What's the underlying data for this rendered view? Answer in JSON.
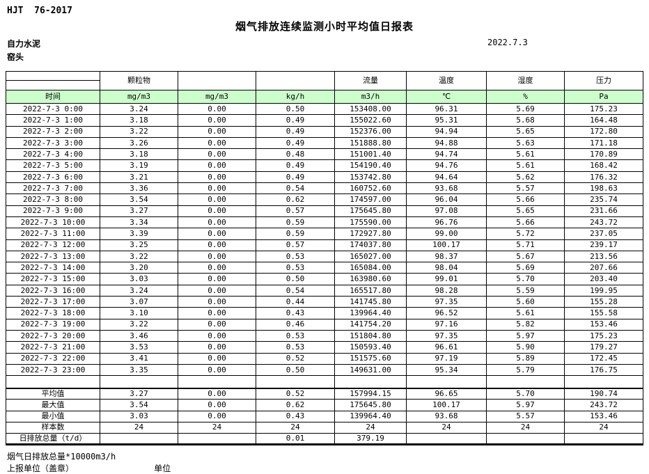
{
  "header": {
    "doc_code": "HJT  76-2017",
    "title": "烟气排放连续监测小时平均值日报表",
    "company": "自力水泥",
    "location": "窑头",
    "date": "2022.7.3"
  },
  "table": {
    "header_fill": "#ccffcc",
    "group_headers": [
      "",
      "颗粒物",
      "",
      "",
      "流量",
      "温度",
      "湿度",
      "压力"
    ],
    "unit_headers": [
      "时间",
      "mg/m3",
      "mg/m3",
      "kg/h",
      "m3/h",
      "℃",
      "%",
      "Pa"
    ],
    "rows": [
      [
        "2022-7-3 0:00",
        "3.24",
        "0.00",
        "0.50",
        "153408.00",
        "96.31",
        "5.69",
        "175.23"
      ],
      [
        "2022-7-3 1:00",
        "3.18",
        "0.00",
        "0.49",
        "155022.60",
        "95.31",
        "5.68",
        "164.48"
      ],
      [
        "2022-7-3 2:00",
        "3.22",
        "0.00",
        "0.49",
        "152376.00",
        "94.94",
        "5.65",
        "172.80"
      ],
      [
        "2022-7-3 3:00",
        "3.26",
        "0.00",
        "0.49",
        "151888.80",
        "94.88",
        "5.63",
        "171.18"
      ],
      [
        "2022-7-3 4:00",
        "3.18",
        "0.00",
        "0.48",
        "151001.40",
        "94.74",
        "5.61",
        "170.89"
      ],
      [
        "2022-7-3 5:00",
        "3.19",
        "0.00",
        "0.49",
        "154190.40",
        "94.76",
        "5.61",
        "168.42"
      ],
      [
        "2022-7-3 6:00",
        "3.21",
        "0.00",
        "0.49",
        "153742.80",
        "94.64",
        "5.62",
        "176.32"
      ],
      [
        "2022-7-3 7:00",
        "3.36",
        "0.00",
        "0.54",
        "160752.60",
        "93.68",
        "5.57",
        "198.63"
      ],
      [
        "2022-7-3 8:00",
        "3.54",
        "0.00",
        "0.62",
        "174597.00",
        "96.04",
        "5.66",
        "235.74"
      ],
      [
        "2022-7-3 9:00",
        "3.27",
        "0.00",
        "0.57",
        "175645.80",
        "97.08",
        "5.65",
        "231.66"
      ],
      [
        "2022-7-3 10:00",
        "3.34",
        "0.00",
        "0.59",
        "175590.00",
        "96.76",
        "5.66",
        "243.72"
      ],
      [
        "2022-7-3 11:00",
        "3.39",
        "0.00",
        "0.59",
        "172927.80",
        "99.00",
        "5.72",
        "237.05"
      ],
      [
        "2022-7-3 12:00",
        "3.25",
        "0.00",
        "0.57",
        "174037.80",
        "100.17",
        "5.71",
        "239.17"
      ],
      [
        "2022-7-3 13:00",
        "3.22",
        "0.00",
        "0.53",
        "165027.00",
        "98.37",
        "5.67",
        "213.56"
      ],
      [
        "2022-7-3 14:00",
        "3.20",
        "0.00",
        "0.53",
        "165084.00",
        "98.04",
        "5.69",
        "207.66"
      ],
      [
        "2022-7-3 15:00",
        "3.03",
        "0.00",
        "0.50",
        "163980.60",
        "99.01",
        "5.70",
        "203.40"
      ],
      [
        "2022-7-3 16:00",
        "3.24",
        "0.00",
        "0.54",
        "165517.80",
        "98.28",
        "5.59",
        "199.95"
      ],
      [
        "2022-7-3 17:00",
        "3.07",
        "0.00",
        "0.44",
        "141745.80",
        "97.35",
        "5.60",
        "155.28"
      ],
      [
        "2022-7-3 18:00",
        "3.10",
        "0.00",
        "0.43",
        "139964.40",
        "96.52",
        "5.61",
        "155.58"
      ],
      [
        "2022-7-3 19:00",
        "3.22",
        "0.00",
        "0.46",
        "141754.20",
        "97.16",
        "5.82",
        "153.46"
      ],
      [
        "2022-7-3 20:00",
        "3.46",
        "0.00",
        "0.53",
        "151804.80",
        "97.35",
        "5.97",
        "175.23"
      ],
      [
        "2022-7-3 21:00",
        "3.53",
        "0.00",
        "0.53",
        "150593.40",
        "96.61",
        "5.90",
        "179.27"
      ],
      [
        "2022-7-3 22:00",
        "3.41",
        "0.00",
        "0.52",
        "151575.60",
        "97.19",
        "5.89",
        "172.45"
      ],
      [
        "2022-7-3 23:00",
        "3.35",
        "0.00",
        "0.50",
        "149631.00",
        "95.34",
        "5.79",
        "176.75"
      ]
    ],
    "summary": [
      {
        "key": "avg",
        "label": "平均值",
        "values": [
          "3.27",
          "0.00",
          "0.52",
          "157994.15",
          "96.65",
          "5.70",
          "190.74"
        ]
      },
      {
        "key": "max",
        "label": "最大值",
        "values": [
          "3.54",
          "0.00",
          "0.62",
          "175645.80",
          "100.17",
          "5.97",
          "243.72"
        ]
      },
      {
        "key": "min",
        "label": "最小值",
        "values": [
          "3.03",
          "0.00",
          "0.43",
          "139964.40",
          "93.68",
          "5.57",
          "153.46"
        ]
      },
      {
        "key": "samples",
        "label": "样本数",
        "values": [
          "24",
          "24",
          "24",
          "24",
          "24",
          "24",
          "24"
        ]
      },
      {
        "key": "daily-total",
        "label": "日排放总量（t/d）",
        "values": [
          "",
          "",
          "0.01",
          "379.19",
          "",
          "",
          ""
        ]
      }
    ]
  },
  "footer": {
    "note": "烟气日排放总量*10000m3/h",
    "report_unit_label": "上报单位（盖章）",
    "unit_label": "单位"
  }
}
